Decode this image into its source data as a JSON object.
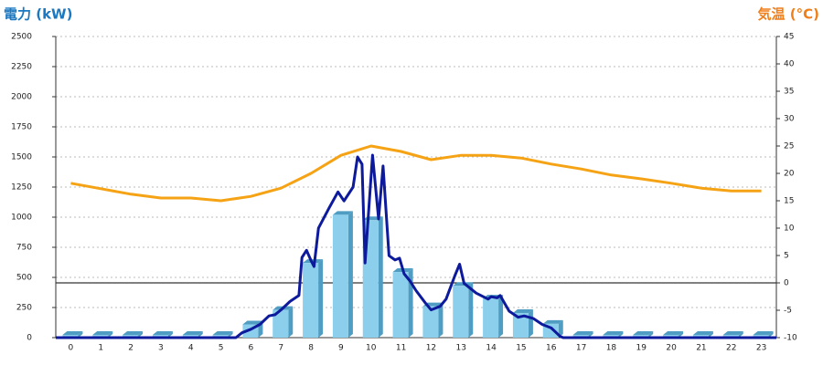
{
  "chart_data": {
    "type": "bar",
    "y_label": "電力 (kW)",
    "y2_label": "気温 (°C)",
    "categories": [
      "0",
      "1",
      "2",
      "3",
      "4",
      "5",
      "6",
      "7",
      "8",
      "9",
      "10",
      "11",
      "12",
      "13",
      "14",
      "15",
      "16",
      "17",
      "18",
      "19",
      "20",
      "21",
      "22",
      "23"
    ],
    "xlim": [
      -0.5,
      23.5
    ],
    "ylim": [
      0,
      2500
    ],
    "yticks": [
      0,
      250,
      500,
      750,
      1000,
      1250,
      1500,
      1750,
      2000,
      2250,
      2500
    ],
    "y2lim": [
      -10,
      45
    ],
    "y2ticks": [
      -10,
      -5,
      0,
      5,
      10,
      15,
      20,
      25,
      30,
      35,
      40,
      45
    ],
    "grid": true,
    "y2_zero_line": true,
    "series": [
      {
        "type": "bar",
        "color": "#8ccfec",
        "side_color": "#4f9dc2",
        "values": [
          0,
          0,
          0,
          0,
          0,
          0,
          110,
          230,
          620,
          1020,
          975,
          545,
          260,
          430,
          325,
          205,
          115,
          0,
          0,
          0,
          0,
          0,
          0,
          0
        ]
      },
      {
        "type": "line",
        "color": "#0d1a9c",
        "x": [
          -0.5,
          5.5,
          5.7,
          6.0,
          6.3,
          6.6,
          6.8,
          7.0,
          7.3,
          7.6,
          7.7,
          7.85,
          8.0,
          8.1,
          8.25,
          8.6,
          8.9,
          9.1,
          9.4,
          9.55,
          9.7,
          9.8,
          10.05,
          10.25,
          10.4,
          10.6,
          10.8,
          10.95,
          11.1,
          11.3,
          11.5,
          11.8,
          12.0,
          12.3,
          12.5,
          12.8,
          12.95,
          13.1,
          13.5,
          13.9,
          14.0,
          14.2,
          14.3,
          14.6,
          14.9,
          15.1,
          15.4,
          15.7,
          16.0,
          16.3,
          16.4,
          23.5
        ],
        "values": [
          0,
          0,
          40,
          70,
          110,
          180,
          190,
          230,
          300,
          350,
          665,
          725,
          640,
          590,
          910,
          1075,
          1210,
          1135,
          1250,
          1500,
          1440,
          620,
          1515,
          985,
          1425,
          680,
          645,
          660,
          530,
          470,
          390,
          290,
          230,
          260,
          320,
          520,
          610,
          450,
          370,
          320,
          340,
          330,
          350,
          220,
          170,
          180,
          160,
          110,
          80,
          10,
          0,
          0
        ]
      },
      {
        "type": "line",
        "axis": "y2",
        "color": "#f5a314",
        "values": [
          18.2,
          17.2,
          16.2,
          15.5,
          15.5,
          15,
          15.8,
          17.3,
          20,
          23.3,
          25,
          24,
          22.5,
          23.3,
          23.3,
          22.8,
          21.7,
          20.8,
          19.7,
          19,
          18.2,
          17.3,
          16.8,
          16.8
        ]
      }
    ]
  }
}
